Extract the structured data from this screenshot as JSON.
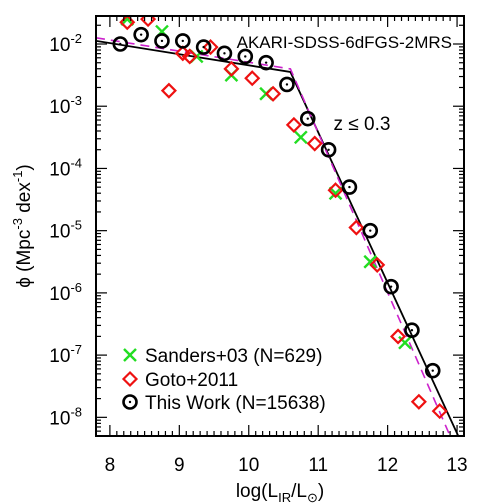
{
  "chart_data": {
    "type": "scatter",
    "title": "AKARI-SDSS-6dFGS-2MRS",
    "annotation": "z ≤ 0.3",
    "xlabel": "log(L_IR/L_⊙)",
    "ylabel": "ϕ (Mpc⁻³ dex⁻¹)",
    "xlim": [
      7.8,
      13.1
    ],
    "ylim_log10": [
      -8.3,
      -1.55
    ],
    "y_scale": "log",
    "grid": false,
    "legend_position": "bottom-left",
    "x_tick_labels": [
      "8",
      "9",
      "10",
      "11",
      "12",
      "13"
    ],
    "y_tick_labels": [
      {
        "exp": -2,
        "label": "10-2"
      },
      {
        "exp": -3,
        "label": "10-3"
      },
      {
        "exp": -4,
        "label": "10-4"
      },
      {
        "exp": -5,
        "label": "10-5"
      },
      {
        "exp": -6,
        "label": "10-6"
      },
      {
        "exp": -7,
        "label": "10-7"
      },
      {
        "exp": -8,
        "label": "10-8"
      }
    ],
    "series": [
      {
        "name": "Sanders+03 (N=629)",
        "marker": "x",
        "color": "#22dd22",
        "x": [
          8.25,
          8.75,
          9.25,
          9.75,
          10.25,
          10.75,
          11.25,
          11.75,
          12.25
        ],
        "log_y": [
          -1.6,
          -1.8,
          -2.2,
          -2.5,
          -2.8,
          -3.5,
          -4.4,
          -5.5,
          -6.8
        ]
      },
      {
        "name": "Goto+2011",
        "marker": "diamond",
        "color": "#ee1111",
        "x": [
          8.25,
          8.55,
          8.85,
          9.05,
          9.15,
          9.45,
          9.75,
          10.05,
          10.35,
          10.65,
          10.95,
          11.25,
          11.55,
          11.85,
          12.15,
          12.45,
          12.75
        ],
        "log_y": [
          -1.65,
          -1.6,
          -2.75,
          -2.15,
          -2.2,
          -2.05,
          -2.4,
          -2.55,
          -2.8,
          -3.3,
          -3.6,
          -4.35,
          -4.95,
          -5.55,
          -6.7,
          -7.75,
          -7.9
        ]
      },
      {
        "name": "This Work (N=15638)",
        "marker": "circle",
        "color": "#000000",
        "x": [
          8.15,
          8.45,
          8.75,
          9.05,
          9.35,
          9.65,
          9.95,
          10.25,
          10.55,
          10.85,
          11.15,
          11.45,
          11.75,
          12.05,
          12.35,
          12.65
        ],
        "log_y": [
          -2.0,
          -1.85,
          -1.95,
          -1.95,
          -2.05,
          -2.15,
          -2.2,
          -2.3,
          -2.65,
          -3.2,
          -3.7,
          -4.3,
          -5.0,
          -5.9,
          -6.6,
          -7.25
        ]
      }
    ],
    "fits": [
      {
        "style": "solid",
        "color": "#000000",
        "x": [
          7.8,
          10.6,
          13.1
        ],
        "log_y": [
          -1.95,
          -2.45,
          -8.5
        ]
      },
      {
        "style": "dashed",
        "color": "#cc22cc",
        "x": [
          7.8,
          10.6,
          12.9
        ],
        "log_y": [
          -1.9,
          -2.4,
          -8.3
        ]
      }
    ]
  }
}
